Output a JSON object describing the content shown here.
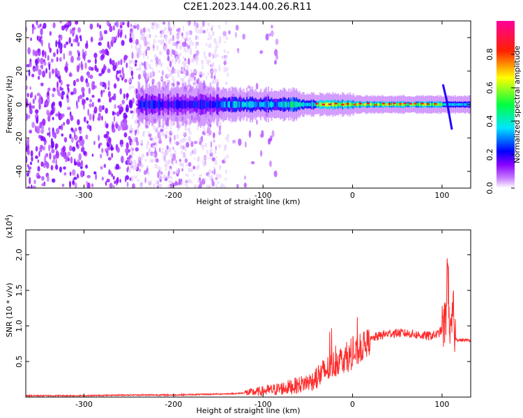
{
  "title": "C2E1.2023.144.00.26.R11",
  "chart_data": [
    {
      "type": "heatmap",
      "xlabel": "Height of straight line (km)",
      "ylabel": "Frequency (Hz)",
      "xlim": [
        -365,
        132
      ],
      "ylim": [
        -50,
        50
      ],
      "x_ticks": [
        -300,
        -200,
        -100,
        0,
        100
      ],
      "x_tick_labels": [
        "-300",
        "-200",
        "-100",
        "0",
        "100"
      ],
      "y_ticks": [
        -40,
        -20,
        0,
        20,
        40
      ],
      "y_tick_labels": [
        "-40",
        "-20",
        "0",
        "20",
        "40"
      ],
      "colorbar": {
        "label": "Normalized spectral amplitude",
        "range": [
          0,
          1
        ],
        "ticks": [
          0.0,
          0.2,
          0.4,
          0.6,
          0.8
        ],
        "tick_labels": [
          "0.0",
          "0.2",
          "0.4",
          "0.6",
          "0.8"
        ],
        "colormap": [
          "#ffffff",
          "#9b30ff",
          "#0000ff",
          "#00e5ff",
          "#00ff00",
          "#ffff00",
          "#ff0000",
          "#ff0099"
        ]
      },
      "description_points": {
        "noise_region_x": [
          -365,
          -140
        ],
        "signal_band_center_hz": 0,
        "bright_segment_x": [
          -40,
          100
        ],
        "feature_x": 105
      }
    },
    {
      "type": "line",
      "xlabel": "Height of straight line (km)",
      "ylabel": "SNR (10 * v/v)",
      "multiplier_label": "(x10",
      "multiplier_exp": "4",
      "xlim": [
        -365,
        132
      ],
      "ylim": [
        0,
        2.35
      ],
      "x_ticks": [
        -300,
        -200,
        -100,
        0,
        100
      ],
      "x_tick_labels": [
        "-300",
        "-200",
        "-100",
        "0",
        "100"
      ],
      "y_ticks": [
        0.5,
        1.0,
        1.5,
        2.0
      ],
      "y_tick_labels": [
        "0.5",
        "1.0",
        "1.5",
        "2.0"
      ],
      "color": "#ff2a2a",
      "series": [
        {
          "x": [
            -365,
            -300,
            -250,
            -200,
            -160,
            -130,
            -110,
            -90,
            -75,
            -60,
            -45,
            -35,
            -25,
            -15,
            -5,
            5,
            15,
            25,
            35,
            45,
            55,
            65,
            75,
            85,
            95,
            100,
            104,
            106,
            108,
            110,
            112,
            115,
            120,
            132
          ],
          "y": [
            0.02,
            0.02,
            0.03,
            0.03,
            0.04,
            0.05,
            0.07,
            0.1,
            0.13,
            0.17,
            0.23,
            0.32,
            0.42,
            0.52,
            0.55,
            0.62,
            0.75,
            0.84,
            0.88,
            0.9,
            0.9,
            0.89,
            0.87,
            0.86,
            0.88,
            0.95,
            1.05,
            1.9,
            1.2,
            0.7,
            1.25,
            0.82,
            0.8,
            0.8
          ]
        }
      ]
    }
  ]
}
